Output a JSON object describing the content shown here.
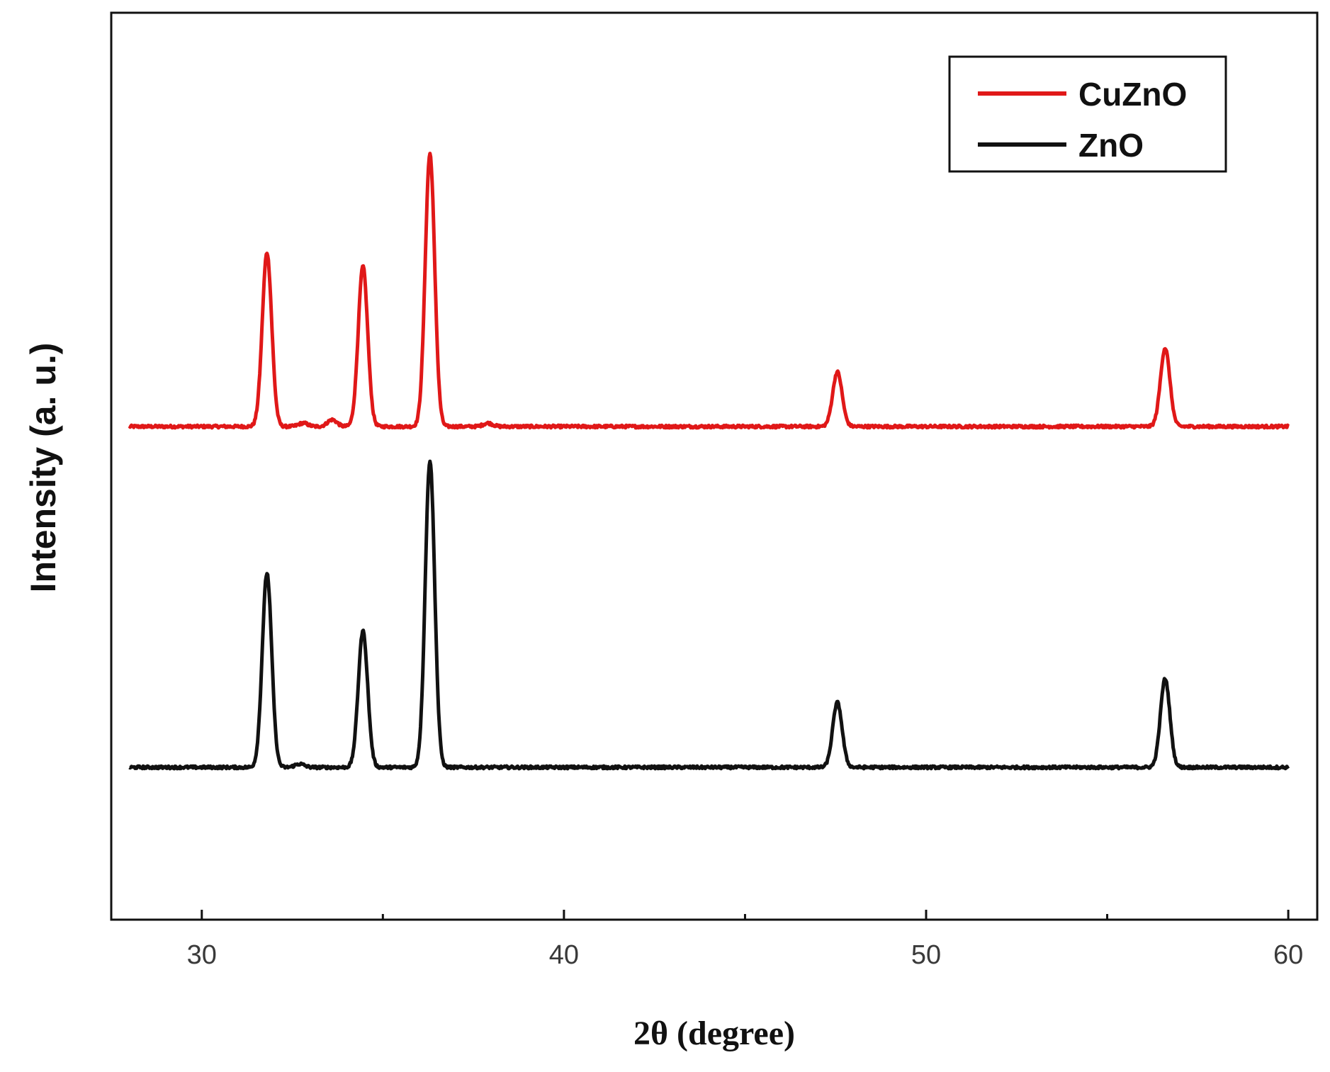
{
  "chart_data": {
    "type": "line",
    "title": "",
    "xlabel": "2θ (degree)",
    "ylabel": "Intensity  (a. u.)",
    "xlim": [
      27.5,
      60.8
    ],
    "x_ticks": [
      30,
      40,
      50,
      60
    ],
    "x_minor_ticks": [
      35,
      45,
      55
    ],
    "y_ticks_shown": false,
    "grid": false,
    "legend_position": "top-right",
    "series": [
      {
        "name": "CuZnO",
        "color": "#e01818",
        "baseline": 1.0,
        "x_range": [
          28,
          60
        ],
        "peaks": [
          {
            "x": 31.8,
            "height": 0.51
          },
          {
            "x": 34.45,
            "height": 0.47
          },
          {
            "x": 36.3,
            "height": 0.8
          },
          {
            "x": 47.55,
            "height": 0.16
          },
          {
            "x": 56.6,
            "height": 0.23
          },
          {
            "x": 33.6,
            "height": 0.02
          },
          {
            "x": 32.8,
            "height": 0.01
          },
          {
            "x": 37.9,
            "height": 0.01
          }
        ]
      },
      {
        "name": "ZnO",
        "color": "#111111",
        "baseline": 0.0,
        "x_range": [
          28,
          60
        ],
        "peaks": [
          {
            "x": 31.8,
            "height": 0.57
          },
          {
            "x": 34.45,
            "height": 0.4
          },
          {
            "x": 36.3,
            "height": 0.9
          },
          {
            "x": 47.55,
            "height": 0.19
          },
          {
            "x": 56.6,
            "height": 0.26
          },
          {
            "x": 32.7,
            "height": 0.01
          }
        ]
      }
    ]
  }
}
